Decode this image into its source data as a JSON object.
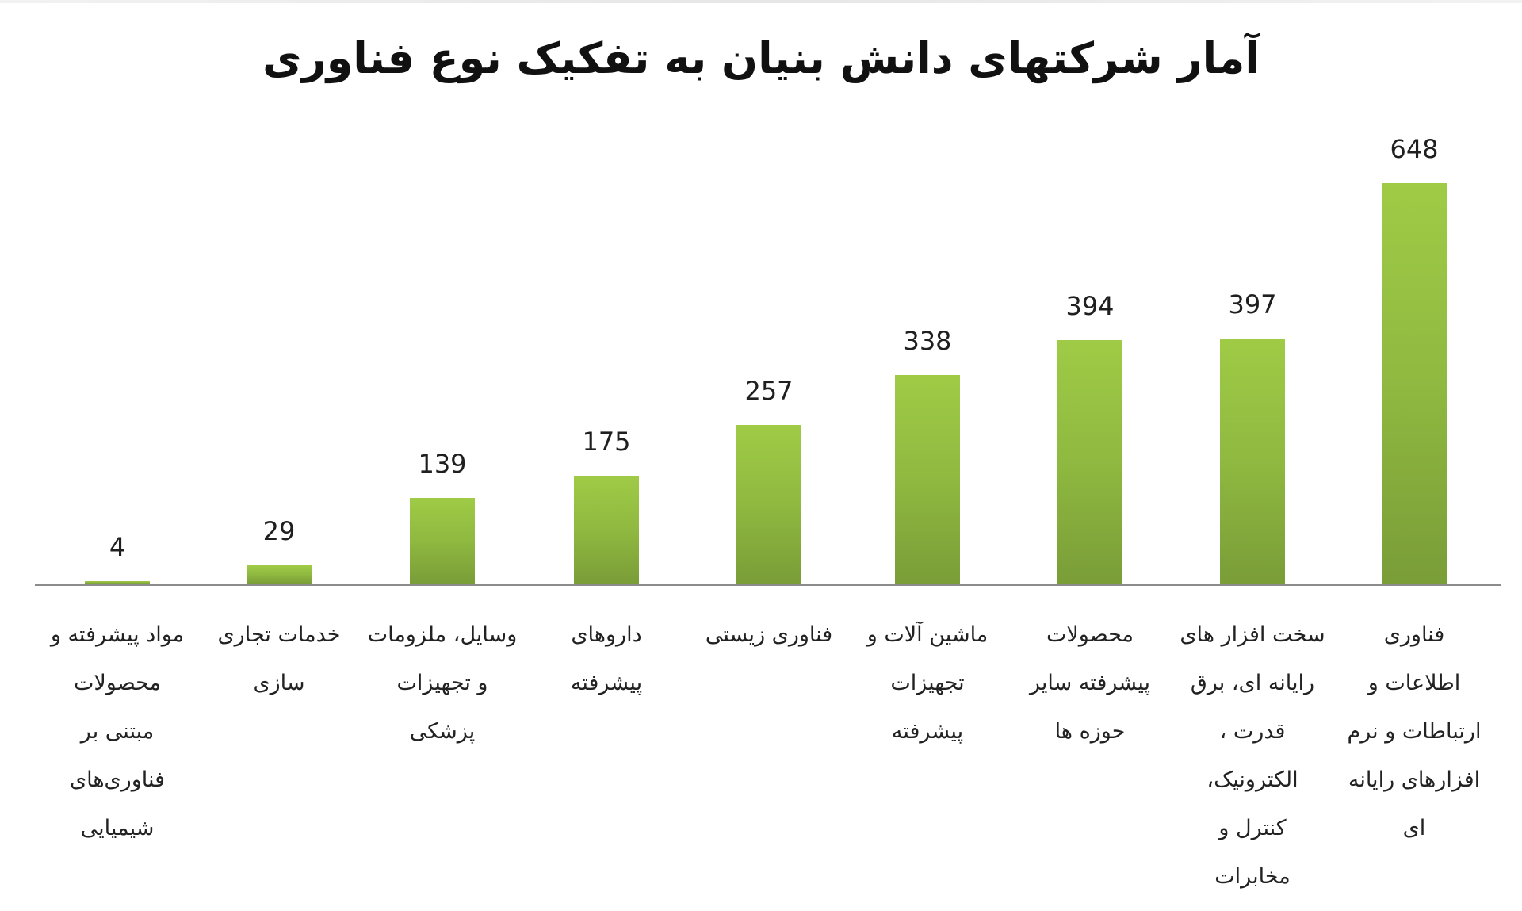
{
  "chart_data": {
    "type": "bar",
    "title": "آمار شرکتهای دانش بنیان به تفکیک نوع فناوری",
    "xlabel": "",
    "ylabel": "",
    "ylim": [
      0,
      700
    ],
    "grid": false,
    "legend": null,
    "categories": [
      "مواد پیشرفته و محصولات مبتنی بر فناوری‌های شیمیایی",
      "خدمات تجاری سازی",
      "وسایل، ملزومات و تجهیزات پزشکی",
      "داروهای پیشرفته",
      "فناوری زیستی",
      "ماشین آلات و تجهیزات پیشرفته",
      "محصولات پیشرفته سایر حوزه ها",
      "سخت افزار های رایانه ای، برق قدرت ، الکترونیک، کنترل و مخابرات",
      "فناوری اطلاعات و ارتباطات و نرم افزارهای رایانه ای"
    ],
    "values": [
      4,
      29,
      139,
      175,
      257,
      338,
      394,
      397,
      648
    ],
    "bar_color": "#8fb940"
  },
  "title": "آمار شرکتهای دانش بنیان به تفکیک نوع فناوری",
  "bars": [
    {
      "value": "4",
      "label_lines": [
        "مواد پیشرفته و",
        "محصولات",
        "مبتنی بر",
        "فناوری‌های",
        "شیمیایی"
      ]
    },
    {
      "value": "29",
      "label_lines": [
        "خدمات تجاری",
        "سازی"
      ]
    },
    {
      "value": "139",
      "label_lines": [
        "وسایل، ملزومات",
        "و تجهیزات",
        "پزشکی"
      ]
    },
    {
      "value": "175",
      "label_lines": [
        "داروهای",
        "پیشرفته"
      ]
    },
    {
      "value": "257",
      "label_lines": [
        "فناوری زیستی"
      ]
    },
    {
      "value": "338",
      "label_lines": [
        "ماشین آلات و",
        "تجهیزات",
        "پیشرفته"
      ]
    },
    {
      "value": "394",
      "label_lines": [
        "محصولات",
        "پیشرفته سایر",
        "حوزه ها"
      ]
    },
    {
      "value": "397",
      "label_lines": [
        "سخت افزار های",
        "رایانه ای، برق",
        "قدرت ،",
        "الکترونیک،",
        "کنترل و",
        "مخابرات"
      ]
    },
    {
      "value": "648",
      "label_lines": [
        "فناوری",
        "اطلاعات و",
        "ارتباطات و نرم",
        "افزارهای رایانه",
        "ای"
      ]
    }
  ]
}
